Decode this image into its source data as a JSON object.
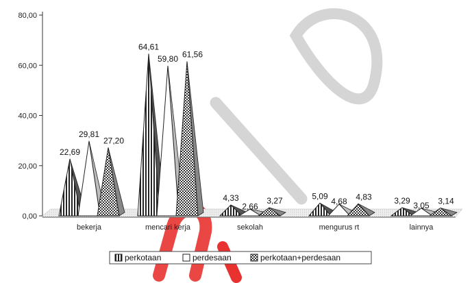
{
  "chart_data": {
    "type": "bar",
    "title": "",
    "xlabel": "",
    "ylabel": "",
    "ylim": [
      0,
      80
    ],
    "yticks": [
      "0,00",
      "20,00",
      "40,00",
      "60,00",
      "80,00"
    ],
    "categories": [
      "bekerja",
      "mencari kerja",
      "sekolah",
      "mengurus rt",
      "lainnya"
    ],
    "series": [
      {
        "name": "perkotaan",
        "values": [
          22.69,
          64.61,
          4.33,
          5.09,
          3.29
        ],
        "labels": [
          "22,69",
          "64,61",
          "4,33",
          "5,09",
          "3,29"
        ]
      },
      {
        "name": "perdesaan",
        "values": [
          29.81,
          59.8,
          2.66,
          4.68,
          3.05
        ],
        "labels": [
          "29,81",
          "59,80",
          "2,66",
          "4,68",
          "3,05"
        ]
      },
      {
        "name": "perkotaan+perdesaan",
        "values": [
          27.2,
          61.56,
          3.27,
          4.83,
          3.14
        ],
        "labels": [
          "27,20",
          "61,56",
          "3,27",
          "4,83",
          "3,14"
        ]
      }
    ],
    "legend": "bottom",
    "grid": false,
    "watermark_color": "#e8322f",
    "watermark_gray": "#cfcfcf"
  }
}
